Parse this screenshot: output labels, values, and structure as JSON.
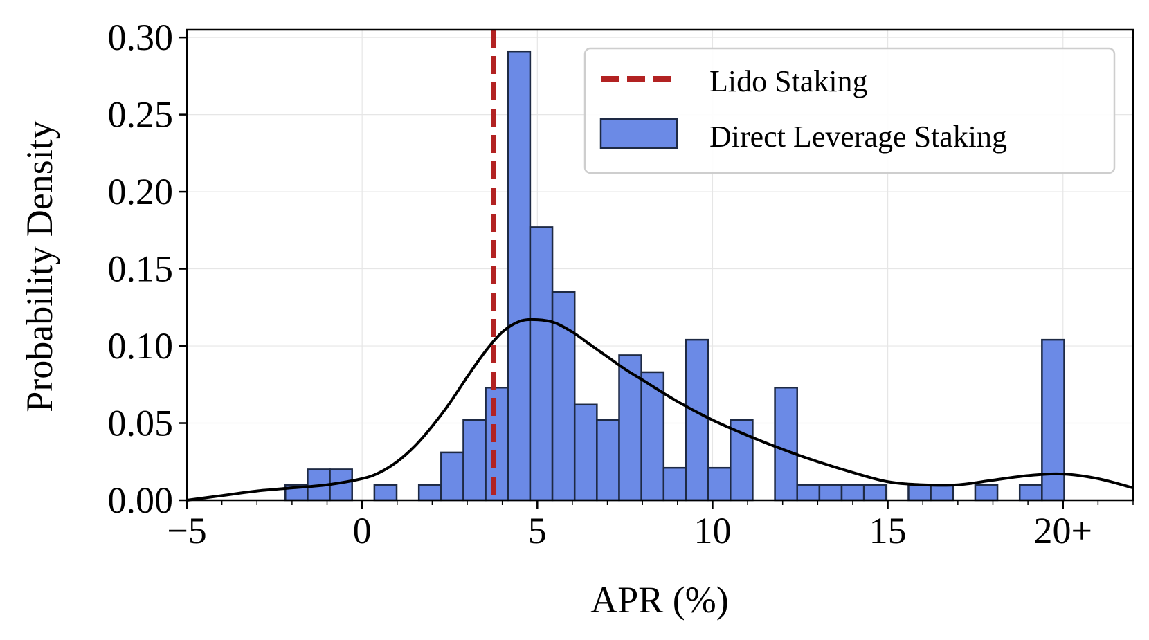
{
  "chart_data": {
    "type": "bar",
    "title": "",
    "xlabel": "APR (%)",
    "ylabel": "Probability Density",
    "xlim": [
      -5,
      22
    ],
    "ylim": [
      0,
      0.305
    ],
    "xticks": [
      -5,
      0,
      5,
      10,
      15,
      20
    ],
    "xtick_labels": [
      "−5",
      "0",
      "5",
      "10",
      "15",
      "20+"
    ],
    "yticks": [
      0,
      0.05,
      0.1,
      0.15,
      0.2,
      0.25,
      0.3
    ],
    "ytick_labels": [
      "0.00",
      "0.05",
      "0.10",
      "0.15",
      "0.20",
      "0.25",
      "0.30"
    ],
    "grid": true,
    "legend_position": "top-right",
    "legend": [
      "Lido Staking",
      "Direct Leverage Staking"
    ],
    "histogram": {
      "name": "Direct Leverage Staking",
      "color": "#6b8ae6",
      "bin_width": 0.635,
      "bins": [
        {
          "x0": -2.19,
          "value": 0.01
        },
        {
          "x0": -1.555,
          "value": 0.02
        },
        {
          "x0": -0.92,
          "value": 0.02
        },
        {
          "x0": -0.285,
          "value": 0.0
        },
        {
          "x0": 0.35,
          "value": 0.01
        },
        {
          "x0": 0.985,
          "value": 0.0
        },
        {
          "x0": 1.62,
          "value": 0.01
        },
        {
          "x0": 2.255,
          "value": 0.031
        },
        {
          "x0": 2.89,
          "value": 0.052
        },
        {
          "x0": 3.525,
          "value": 0.073
        },
        {
          "x0": 4.16,
          "value": 0.291
        },
        {
          "x0": 4.795,
          "value": 0.177
        },
        {
          "x0": 5.43,
          "value": 0.135
        },
        {
          "x0": 6.065,
          "value": 0.062
        },
        {
          "x0": 6.7,
          "value": 0.052
        },
        {
          "x0": 7.335,
          "value": 0.094
        },
        {
          "x0": 7.97,
          "value": 0.083
        },
        {
          "x0": 8.605,
          "value": 0.021
        },
        {
          "x0": 9.24,
          "value": 0.104
        },
        {
          "x0": 9.875,
          "value": 0.021
        },
        {
          "x0": 10.51,
          "value": 0.052
        },
        {
          "x0": 11.145,
          "value": 0.0
        },
        {
          "x0": 11.78,
          "value": 0.073
        },
        {
          "x0": 12.415,
          "value": 0.01
        },
        {
          "x0": 13.05,
          "value": 0.01
        },
        {
          "x0": 13.685,
          "value": 0.01
        },
        {
          "x0": 14.32,
          "value": 0.01
        },
        {
          "x0": 14.955,
          "value": 0.0
        },
        {
          "x0": 15.59,
          "value": 0.01
        },
        {
          "x0": 16.225,
          "value": 0.01
        },
        {
          "x0": 16.86,
          "value": 0.0
        },
        {
          "x0": 17.495,
          "value": 0.01
        },
        {
          "x0": 18.13,
          "value": 0.0
        },
        {
          "x0": 18.765,
          "value": 0.01
        },
        {
          "x0": 19.4,
          "value": 0.104
        }
      ]
    },
    "kde": {
      "color": "#000000",
      "x": [
        -5,
        -4,
        -3,
        -2,
        -1,
        0,
        0.5,
        1,
        1.5,
        2,
        2.5,
        3,
        3.5,
        4,
        4.5,
        5,
        5.5,
        6,
        6.5,
        7,
        7.5,
        8,
        9,
        10,
        11,
        12,
        13,
        14,
        15,
        16,
        17,
        18,
        19,
        20,
        21,
        22
      ],
      "y": [
        0.0,
        0.003,
        0.006,
        0.008,
        0.01,
        0.014,
        0.018,
        0.025,
        0.035,
        0.048,
        0.063,
        0.08,
        0.096,
        0.109,
        0.116,
        0.117,
        0.115,
        0.109,
        0.101,
        0.093,
        0.085,
        0.078,
        0.064,
        0.052,
        0.042,
        0.033,
        0.025,
        0.018,
        0.012,
        0.01,
        0.01,
        0.013,
        0.016,
        0.017,
        0.014,
        0.008
      ]
    },
    "vline": {
      "name": "Lido Staking",
      "x": 3.75,
      "color": "#b22222",
      "style": "dashed"
    }
  }
}
